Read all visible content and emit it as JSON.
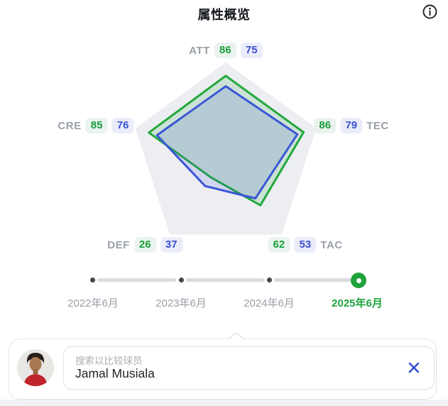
{
  "header": {
    "title": "属性概览"
  },
  "icons": {
    "info": "info-circle-icon",
    "close": "close-x-icon",
    "avatar": "player-photo"
  },
  "chart_data": {
    "type": "radar",
    "title": "属性概览",
    "axes": [
      "ATT",
      "TEC",
      "TAC",
      "DEF",
      "CRE"
    ],
    "max": 100,
    "legend_position": "none",
    "background_polygon_color": "#edeef2",
    "series": [
      {
        "name": "selected-player",
        "color": "#22a83c",
        "fill": "rgba(34,168,60,0.16)",
        "values": {
          "ATT": 86,
          "TEC": 86,
          "TAC": 62,
          "DEF": 26,
          "CRE": 85
        }
      },
      {
        "name": "comparison-player",
        "color": "#3c56d6",
        "fill": "rgba(60,86,214,0.16)",
        "values": {
          "ATT": 75,
          "TEC": 79,
          "TAC": 53,
          "DEF": 37,
          "CRE": 76
        }
      }
    ]
  },
  "timeline": {
    "items": [
      {
        "label": "2022年6月",
        "active": false
      },
      {
        "label": "2023年6月",
        "active": false
      },
      {
        "label": "2024年6月",
        "active": false
      },
      {
        "label": "2025年6月",
        "active": true
      }
    ],
    "active_color": "#1fa33c"
  },
  "search": {
    "placeholder": "搜索以比较球员",
    "value": "Jamal Musiala"
  }
}
